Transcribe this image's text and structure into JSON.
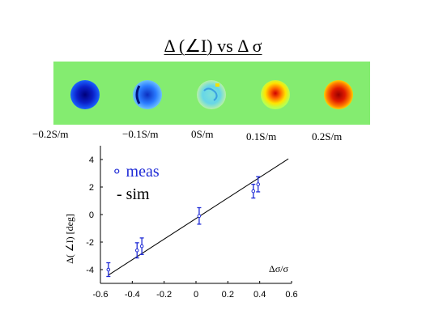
{
  "slide": {
    "title": "Δ (∠I)  vs Δ σ"
  },
  "strip": {
    "background": "#84ec70",
    "images": [
      {
        "label": "−0.2S/m",
        "colormap_tone": "deep-blue"
      },
      {
        "label": "−0.1S/m",
        "colormap_tone": "blue"
      },
      {
        "label": "0S/m",
        "colormap_tone": "cyan-neutral"
      },
      {
        "label": "0.1S/m",
        "colormap_tone": "yellow-red"
      },
      {
        "label": "0.2S/m",
        "colormap_tone": "red"
      }
    ]
  },
  "chart_data": {
    "type": "scatter",
    "xlabel": "Δσ/σ",
    "ylabel": "Δ( ∠I) [deg]",
    "xlim": [
      -0.6,
      0.6
    ],
    "ylim": [
      -5,
      5
    ],
    "xticks": [
      "-0.6",
      "-0.4",
      "-0.2",
      "0",
      "0.2",
      "0.4",
      "0.6"
    ],
    "yticks": [
      "4",
      "2",
      "0",
      "-2",
      "-4"
    ],
    "grid": false,
    "legend": {
      "position": "top-left",
      "entries": [
        {
          "symbol": "∘",
          "name": "meas",
          "color": "#1f2bd6"
        },
        {
          "symbol": "-",
          "name": "sim",
          "color": "#000000"
        }
      ]
    },
    "series": [
      {
        "name": "meas",
        "color": "#1f2bd6",
        "points": [
          {
            "x": -0.55,
            "y": -4.0,
            "err": 0.5
          },
          {
            "x": -0.37,
            "y": -2.6,
            "err": 0.55
          },
          {
            "x": -0.34,
            "y": -2.3,
            "err": 0.6
          },
          {
            "x": 0.02,
            "y": -0.1,
            "err": 0.6
          },
          {
            "x": 0.36,
            "y": 1.7,
            "err": 0.5
          },
          {
            "x": 0.39,
            "y": 2.2,
            "err": 0.55
          }
        ]
      },
      {
        "name": "sim",
        "color": "#000000",
        "line": {
          "x": [
            -0.55,
            0.58
          ],
          "y": [
            -4.4,
            4.05
          ]
        }
      }
    ]
  }
}
